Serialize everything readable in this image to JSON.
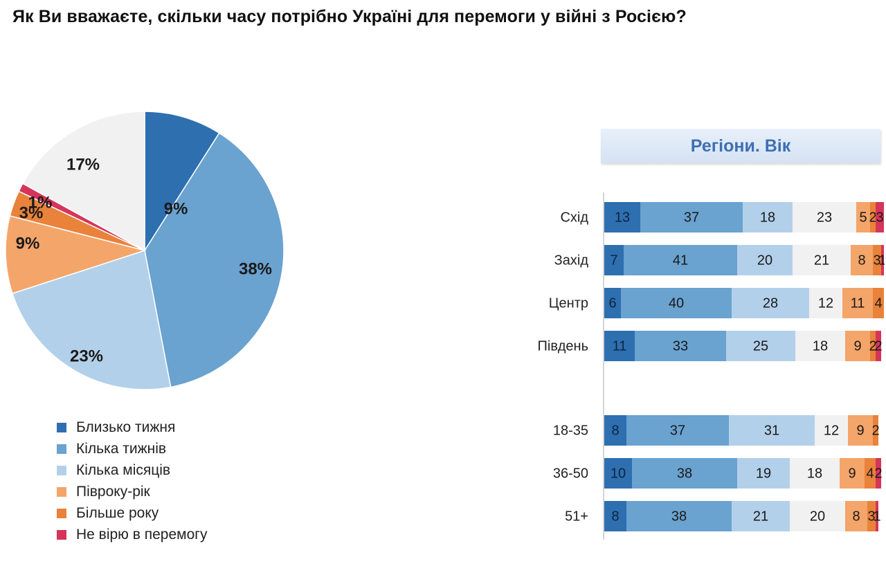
{
  "title": "Як Ви вважаєте, скільки часу потрібно Україні для перемоги у війні з Росією?",
  "colors": {
    "Близько тижня": "#2e6fb0",
    "Кілька тижнів": "#6aa2d0",
    "Кілька місяців": "#b3d0ea",
    "Півроку-рік": "#f4a56a",
    "Більше року": "#e9823a",
    "Не вірю в перемогу": "#d6355a",
    "other": "#f1f1f1"
  },
  "chart_data": [
    {
      "type": "pie",
      "categories": [
        "Близько тижня",
        "Кілька тижнів",
        "Кілька місяців",
        "Півроку-рік",
        "Більше року",
        "Не вірю в перемогу",
        ""
      ],
      "values": [
        9,
        38,
        23,
        9,
        3,
        1,
        17
      ],
      "labels": [
        "9%",
        "38%",
        "23%",
        "9%",
        "3%",
        "1%",
        "17%"
      ],
      "legend": [
        "Близько тижня",
        "Кілька тижнів",
        "Кілька місяців",
        "Півроку-рік",
        "Більше року",
        "Не вірю в перемогу"
      ],
      "legend_position": "bottom-left"
    },
    {
      "type": "bar",
      "orientation": "horizontal",
      "stacked": true,
      "title": "Регіони. Вік",
      "categories": [
        "Схід",
        "Захід",
        "Центр",
        "Південь",
        "18-35",
        "36-50",
        "51+"
      ],
      "series": [
        {
          "name": "Близько тижня",
          "values": [
            13,
            7,
            6,
            11,
            8,
            10,
            8
          ]
        },
        {
          "name": "Кілька тижнів",
          "values": [
            37,
            41,
            40,
            33,
            37,
            38,
            38
          ]
        },
        {
          "name": "Кілька місяців",
          "values": [
            18,
            20,
            28,
            25,
            31,
            19,
            21
          ]
        },
        {
          "name": "",
          "values": [
            23,
            21,
            12,
            18,
            12,
            18,
            20
          ]
        },
        {
          "name": "Півроку-рік",
          "values": [
            5,
            8,
            11,
            9,
            9,
            9,
            8
          ]
        },
        {
          "name": "Більше року",
          "values": [
            2,
            3,
            4,
            2,
            2,
            4,
            3
          ]
        },
        {
          "name": "Не вірю в перемогу",
          "values": [
            3,
            1,
            0,
            2,
            0,
            2,
            1
          ]
        }
      ],
      "xlim": [
        0,
        100
      ]
    }
  ]
}
